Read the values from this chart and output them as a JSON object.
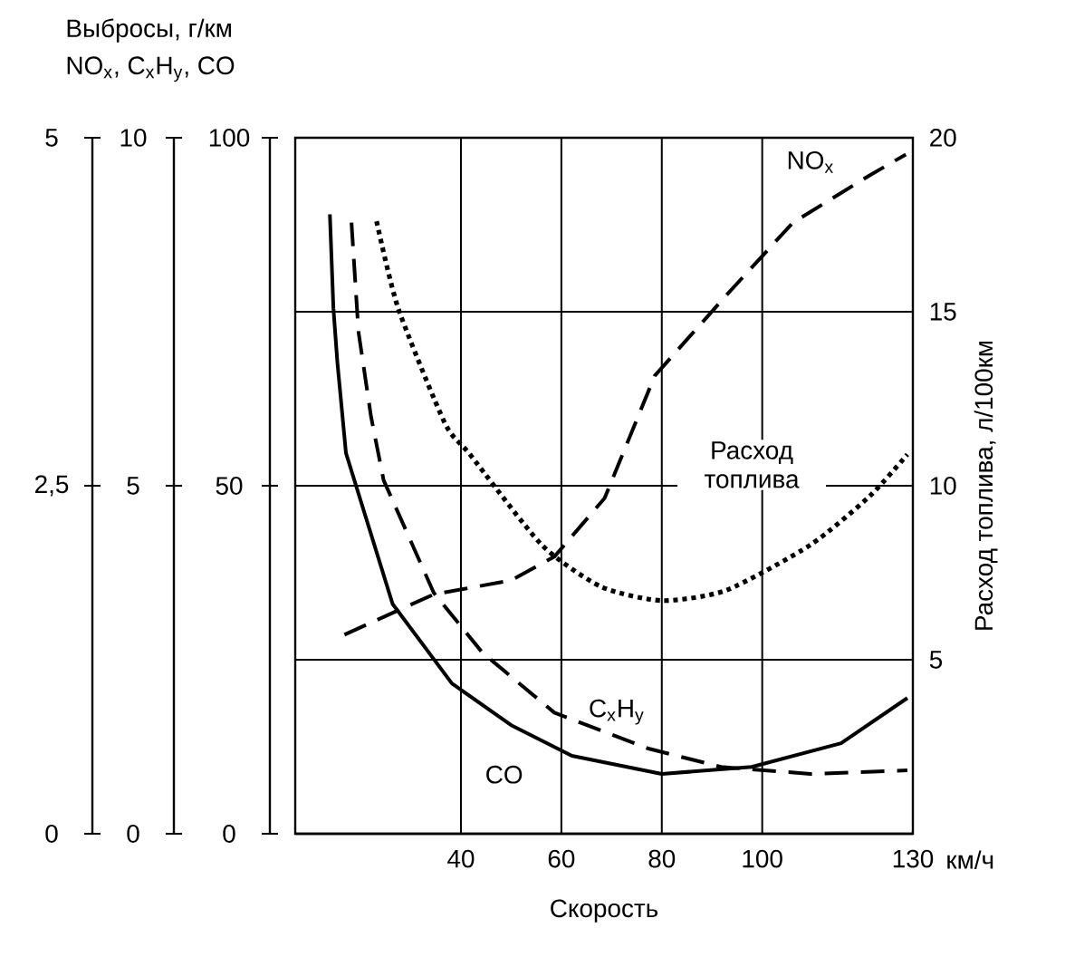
{
  "chart_data": [
    {
      "type": "line",
      "title": "Выбросы, г/км",
      "subtitle": "NO$_{x}$, C$_{x}$H$_{y}$, CO",
      "xlim": [
        7,
        130
      ],
      "tick_labels": "y",
      "ylim": [
        0,
        100
      ],
      "yticks": [
        0,
        50,
        100
      ],
      "y2lim": [
        0,
        10
      ],
      "y2ticks": [
        0,
        5,
        10
      ],
      "y3lim": [
        0,
        5
      ],
      "y3ticks": [
        0,
        {
          "value": 2.5,
          "label": "2,5"
        },
        5
      ],
      "series": [
        {
          "name": "NO$_{x}$",
          "axis": "y3",
          "color": "#000000",
          "line_style": "dashed",
          "x": [
            16.8,
            34.6,
            50,
            58.6,
            68.6,
            78.6,
            92.9,
            106.1,
            121.4,
            128.6
          ],
          "values": [
            1.43,
            1.72,
            1.82,
            1.99,
            2.41,
            3.29,
            3.87,
            4.39,
            4.73,
            4.88
          ]
        },
        {
          "name": "C$_{x}$H$_{y}$",
          "axis": "y2",
          "color": "#000000",
          "line_style": "dashed",
          "x": [
            18.2,
            19.6,
            22.1,
            24.6,
            34.6,
            44.3,
            58.6,
            77.5,
            91.8,
            109.6,
            128.9
          ],
          "values": [
            8.78,
            7.21,
            5.99,
            5.08,
            3.46,
            2.6,
            1.74,
            1.22,
            0.96,
            0.86,
            0.91
          ]
        },
        {
          "name": "CO",
          "axis": "y",
          "color": "#000000",
          "line_style": "solid",
          "x": [
            13.9,
            14.6,
            15.4,
            17.1,
            26.4,
            38.2,
            50,
            62.1,
            80,
            97.9,
            115.7,
            128.9
          ],
          "values": [
            89,
            75.5,
            67.7,
            54.7,
            33,
            21.6,
            15.6,
            11.2,
            8.6,
            9.6,
            13,
            19.5
          ]
        }
      ]
    },
    {
      "type": "line",
      "xlabel": "Скорость",
      "ylabel": "Расход топлива, л/100км",
      "annotations": [
        "км/ч"
      ],
      "xlim": [
        7,
        130
      ],
      "xticks": [
        40,
        60,
        80,
        100,
        130
      ],
      "ylim": [
        0,
        20
      ],
      "yticks": [
        5,
        10,
        15,
        20
      ],
      "grid": true,
      "series": [
        {
          "name": "Расход топлива",
          "color": "#000000",
          "line_style": "dotted",
          "x": [
            23.2,
            27.5,
            36.8,
            41.8,
            56.1,
            67.9,
            80,
            92.9,
            109.6,
            121.4,
            128.9
          ],
          "values": [
            17.6,
            15.1,
            11.8,
            10.9,
            8.3,
            7.1,
            6.7,
            7.0,
            8.3,
            9.7,
            10.9
          ]
        }
      ]
    }
  ]
}
